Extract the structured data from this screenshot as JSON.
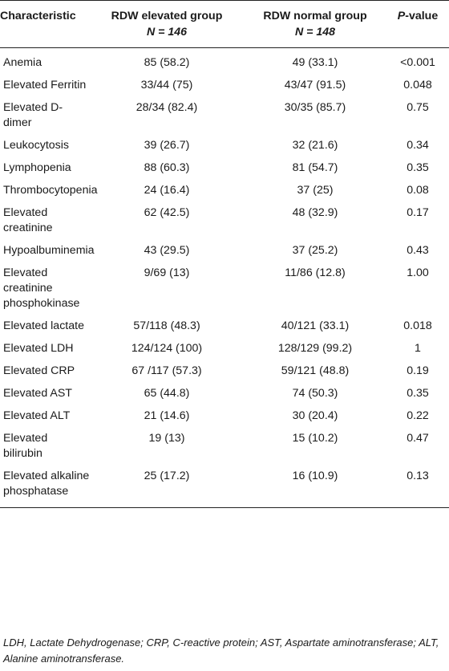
{
  "header": {
    "characteristic": "Characteristic",
    "elevated_group": "RDW elevated group",
    "elevated_n": "N = 146",
    "normal_group": "RDW normal group",
    "normal_n": "N = 148",
    "pvalue_p": "P",
    "pvalue_rest": "-value"
  },
  "rows": [
    {
      "label": "Anemia",
      "elevated": "85 (58.2)",
      "normal": "49 (33.1)",
      "p": "<0.001"
    },
    {
      "label": "Elevated Ferritin",
      "elevated": "33/44 (75)",
      "normal": "43/47 (91.5)",
      "p": "0.048"
    },
    {
      "label": "Elevated D-dimer",
      "elevated": "28/34 (82.4)",
      "normal": "30/35 (85.7)",
      "p": "0.75"
    },
    {
      "label": "Leukocytosis",
      "elevated": "39 (26.7)",
      "normal": "32 (21.6)",
      "p": "0.34"
    },
    {
      "label": "Lymphopenia",
      "elevated": "88 (60.3)",
      "normal": "81 (54.7)",
      "p": "0.35"
    },
    {
      "label": "Thrombocytopenia",
      "elevated": "24 (16.4)",
      "normal": "37 (25)",
      "p": "0.08"
    },
    {
      "label": "Elevated creatinine",
      "elevated": "62 (42.5)",
      "normal": "48 (32.9)",
      "p": "0.17"
    },
    {
      "label": "Hypoalbuminemia",
      "elevated": "43 (29.5)",
      "normal": "37 (25.2)",
      "p": "0.43"
    },
    {
      "label": "Elevated creatinine phosphokinase",
      "elevated": "9/69 (13)",
      "normal": "11/86 (12.8)",
      "p": "1.00"
    },
    {
      "label": "Elevated lactate",
      "elevated": "57/118 (48.3)",
      "normal": "40/121 (33.1)",
      "p": "0.018"
    },
    {
      "label": "Elevated LDH",
      "elevated": "124/124 (100)",
      "normal": "128/129 (99.2)",
      "p": "1"
    },
    {
      "label": "Elevated CRP",
      "elevated": "67 /117 (57.3)",
      "normal": "59/121 (48.8)",
      "p": "0.19"
    },
    {
      "label": "Elevated AST",
      "elevated": "65 (44.8)",
      "normal": "74 (50.3)",
      "p": "0.35"
    },
    {
      "label": "Elevated ALT",
      "elevated": "21 (14.6)",
      "normal": "30 (20.4)",
      "p": "0.22"
    },
    {
      "label": "Elevated bilirubin",
      "elevated": "19 (13)",
      "normal": "15 (10.2)",
      "p": "0.47"
    },
    {
      "label": "Elevated alkaline phosphatase",
      "elevated": "25 (17.2)",
      "normal": "16 (10.9)",
      "p": "0.13"
    }
  ],
  "footnote": "LDH, Lactate Dehydrogenase; CRP, C-reactive protein; AST, Aspartate aminotransferase; ALT, Alanine aminotransferase."
}
